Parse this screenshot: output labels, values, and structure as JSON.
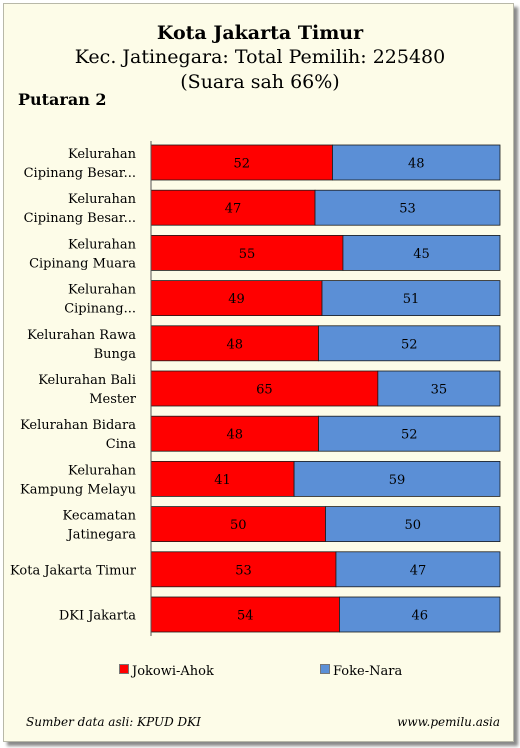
{
  "chart_data": {
    "type": "bar",
    "stacked": true,
    "orientation": "horizontal",
    "title": "Kota Jakarta Timur",
    "subtitle_line1": "Kec. Jatinegara: Total Pemilih: 225480",
    "subtitle_line2": "(Suara sah 66%)",
    "round_label": "Putaran 2",
    "categories": [
      [
        "Kelurahan",
        "Cipinang Besar..."
      ],
      [
        "Kelurahan",
        "Cipinang Besar..."
      ],
      [
        "Kelurahan",
        "Cipinang Muara"
      ],
      [
        "Kelurahan",
        "Cipinang..."
      ],
      [
        "Kelurahan Rawa",
        "Bunga"
      ],
      [
        "Kelurahan Bali",
        "Mester"
      ],
      [
        "Kelurahan Bidara",
        "Cina"
      ],
      [
        "Kelurahan",
        "Kampung Melayu"
      ],
      [
        "Kecamatan",
        "Jatinegara"
      ],
      [
        "Kota Jakarta Timur"
      ],
      [
        "DKI Jakarta"
      ]
    ],
    "series": [
      {
        "name": "Jokowi-Ahok",
        "color": "#ff0000",
        "values": [
          52,
          47,
          55,
          49,
          48,
          65,
          48,
          41,
          50,
          53,
          54
        ]
      },
      {
        "name": "Foke-Nara",
        "color": "#5b8fd6",
        "values": [
          48,
          53,
          45,
          51,
          52,
          35,
          52,
          59,
          50,
          47,
          46
        ]
      }
    ],
    "xlim": [
      0,
      100
    ],
    "grid": false,
    "legend_position": "bottom"
  },
  "footer": {
    "source": "Sumber data asli: KPUD DKI",
    "site": "www.pemilu.asia"
  }
}
